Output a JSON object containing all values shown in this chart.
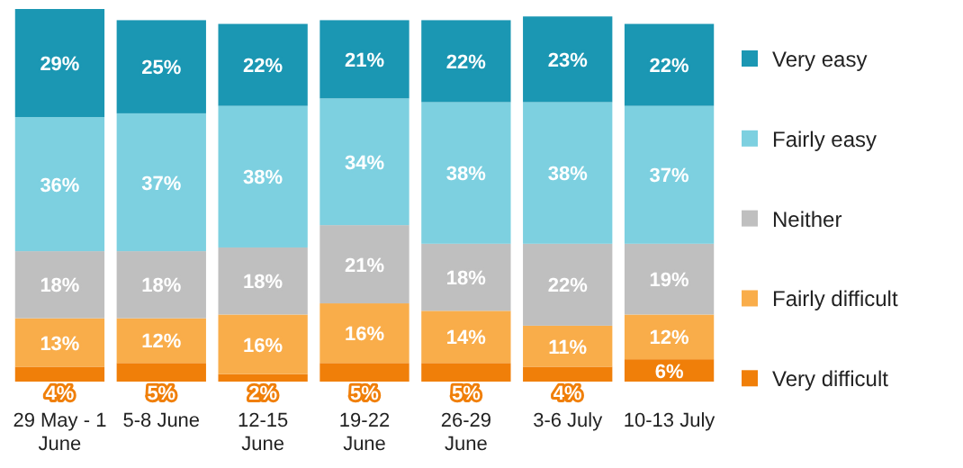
{
  "chart_data": {
    "type": "bar",
    "stacked": true,
    "legend": "right",
    "categories": [
      "29 May - 1 June",
      "5-8 June",
      "12-15 June",
      "19-22 June",
      "26-29 June",
      "3-6 July",
      "10-13 July"
    ],
    "series": [
      {
        "name": "Very difficult",
        "color": "#f07f09",
        "values": [
          4,
          5,
          2,
          5,
          5,
          4,
          6
        ],
        "value_labels": [
          "4%",
          "5%",
          "2%",
          "5%",
          "5%",
          "4%",
          "6%"
        ]
      },
      {
        "name": "Fairly difficult",
        "color": "#f9ad4a",
        "values": [
          13,
          12,
          16,
          16,
          14,
          11,
          12
        ],
        "value_labels": [
          "13%",
          "12%",
          "16%",
          "16%",
          "14%",
          "11%",
          "12%"
        ]
      },
      {
        "name": "Neither",
        "color": "#bfbfbf",
        "values": [
          18,
          18,
          18,
          21,
          18,
          22,
          19
        ],
        "value_labels": [
          "18%",
          "18%",
          "18%",
          "21%",
          "18%",
          "22%",
          "19%"
        ]
      },
      {
        "name": "Fairly easy",
        "color": "#7dd0e0",
        "values": [
          36,
          37,
          38,
          34,
          38,
          38,
          37
        ],
        "value_labels": [
          "36%",
          "37%",
          "38%",
          "34%",
          "38%",
          "38%",
          "37%"
        ]
      },
      {
        "name": "Very easy",
        "color": "#1b97b3",
        "values": [
          29,
          25,
          22,
          21,
          22,
          23,
          22
        ],
        "value_labels": [
          "29%",
          "25%",
          "22%",
          "21%",
          "22%",
          "23%",
          "22%"
        ]
      }
    ]
  }
}
